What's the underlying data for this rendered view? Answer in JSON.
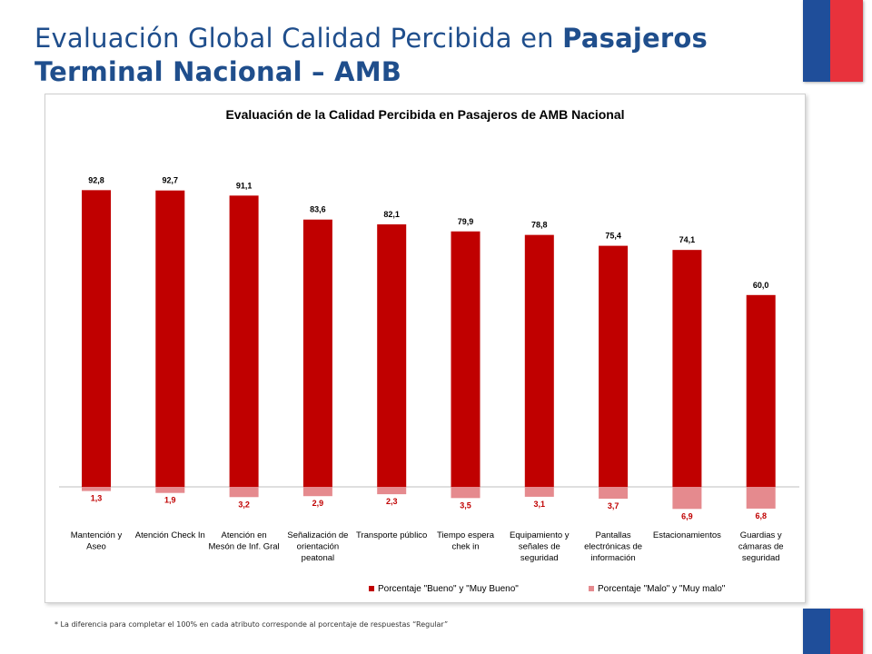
{
  "slide": {
    "title_regular": "Evaluación Global Calidad Percibida en ",
    "title_bold_1": "Pasajeros",
    "title_bold_2": "Terminal Nacional – AMB",
    "footnote": "* La diferencia para completar el 100% en cada atributo corresponde al porcentaje de respuestas “Regular”"
  },
  "colors": {
    "title": "#1f4e8c",
    "series_good": "#c00000",
    "series_bad": "#e58a8e",
    "flag_blue": "#1f4e9a",
    "flag_red": "#e8323c"
  },
  "chart_data": {
    "type": "bar",
    "title": "Evaluación de la Calidad Percibida en Pasajeros de AMB Nacional",
    "categories": [
      [
        "Mantención y",
        "Aseo"
      ],
      [
        "Atención Check In"
      ],
      [
        "Atención en",
        "Mesón de Inf. Gral"
      ],
      [
        "Señalización de",
        "orientación",
        "peatonal"
      ],
      [
        "Transporte público"
      ],
      [
        "Tiempo espera",
        "chek in"
      ],
      [
        "Equipamiento y",
        "señales de",
        "seguridad"
      ],
      [
        "Pantallas",
        "electrónicas de",
        "información"
      ],
      [
        "Estacionamientos"
      ],
      [
        "Guardias y",
        "cámaras de",
        "seguridad"
      ]
    ],
    "series": [
      {
        "name": "Porcentaje \"Bueno\" y \"Muy Bueno\"",
        "values": [
          92.8,
          92.7,
          91.1,
          83.6,
          82.1,
          79.9,
          78.8,
          75.4,
          74.1,
          60.0
        ],
        "labels": [
          "92,8",
          "92,7",
          "91,1",
          "83,6",
          "82,1",
          "79,9",
          "78,8",
          "75,4",
          "74,1",
          "60,0"
        ],
        "direction": "up"
      },
      {
        "name": "Porcentaje \"Malo\" y \"Muy malo\"",
        "values": [
          1.3,
          1.9,
          3.2,
          2.9,
          2.3,
          3.5,
          3.1,
          3.7,
          6.9,
          6.8
        ],
        "labels": [
          "1,3",
          "1,9",
          "3,2",
          "2,9",
          "2,3",
          "3,5",
          "3,1",
          "3,7",
          "6,9",
          "6,8"
        ],
        "direction": "down"
      }
    ],
    "legend_position": "bottom",
    "grid": false
  }
}
